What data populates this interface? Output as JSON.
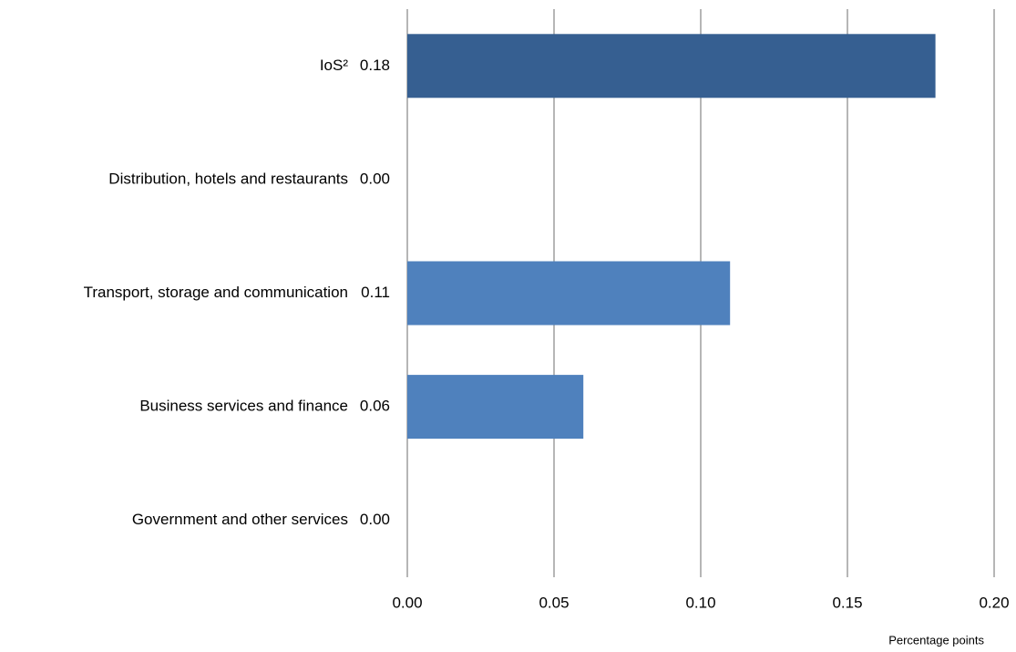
{
  "chart_data": {
    "type": "hbar",
    "categories": [
      "IoS²",
      "Distribution, hotels and restaurants",
      "Transport, storage and communication",
      "Business services and finance",
      "Government and other services"
    ],
    "values": [
      0.18,
      0,
      0.11,
      0.06,
      0
    ],
    "value_labels": [
      "0.18",
      "0.00",
      "0.11",
      "0.06",
      "0.00"
    ],
    "colors": [
      "#365f91",
      "#4f81bd",
      "#4f81bd",
      "#4f81bd",
      "#4f81bd"
    ],
    "xlim": [
      0,
      0.2
    ],
    "xticks": [
      {
        "value": 0,
        "label": "0.00"
      },
      {
        "value": 0.05,
        "label": "0.05"
      },
      {
        "value": 0.1,
        "label": "0.10"
      },
      {
        "value": 0.15,
        "label": "0.15"
      },
      {
        "value": 0.2,
        "label": "0.20"
      }
    ],
    "xlabel": "Percentage points",
    "grid": true
  }
}
